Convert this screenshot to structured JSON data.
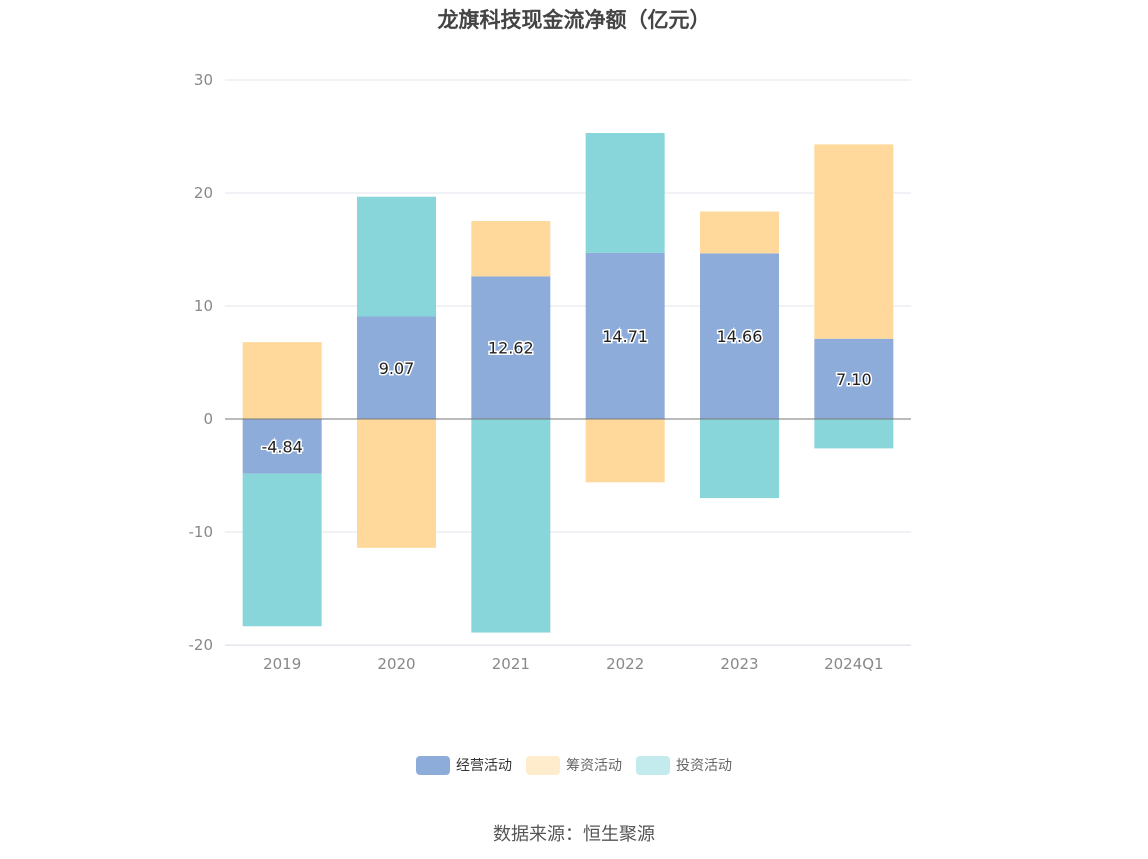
{
  "chart_data": {
    "type": "bar",
    "stacked": true,
    "title": "龙旗科技现金流净额（亿元）",
    "categories": [
      "2019",
      "2020",
      "2021",
      "2022",
      "2023",
      "2024Q1"
    ],
    "series": [
      {
        "name": "经营活动",
        "color": "#8eacda",
        "values": [
          -4.84,
          9.07,
          12.62,
          14.71,
          14.66,
          7.1
        ],
        "labels": [
          "-4.84",
          "9.07",
          "12.62",
          "14.71",
          "14.66",
          "7.10"
        ]
      },
      {
        "name": "筹资活动",
        "color": "#fed99b",
        "values": [
          6.8,
          -11.4,
          4.9,
          -5.6,
          3.7,
          17.2
        ]
      },
      {
        "name": "投资活动",
        "color": "#88d6da",
        "values": [
          -13.5,
          10.6,
          -18.9,
          10.6,
          -7.0,
          -2.6
        ]
      }
    ],
    "ylim": [
      -20,
      30
    ],
    "yticks": [
      "-20",
      "-10",
      "0",
      "10",
      "20",
      "30"
    ],
    "grid": true,
    "legend_position": "bottom",
    "source": "数据来源：恒生聚源"
  }
}
